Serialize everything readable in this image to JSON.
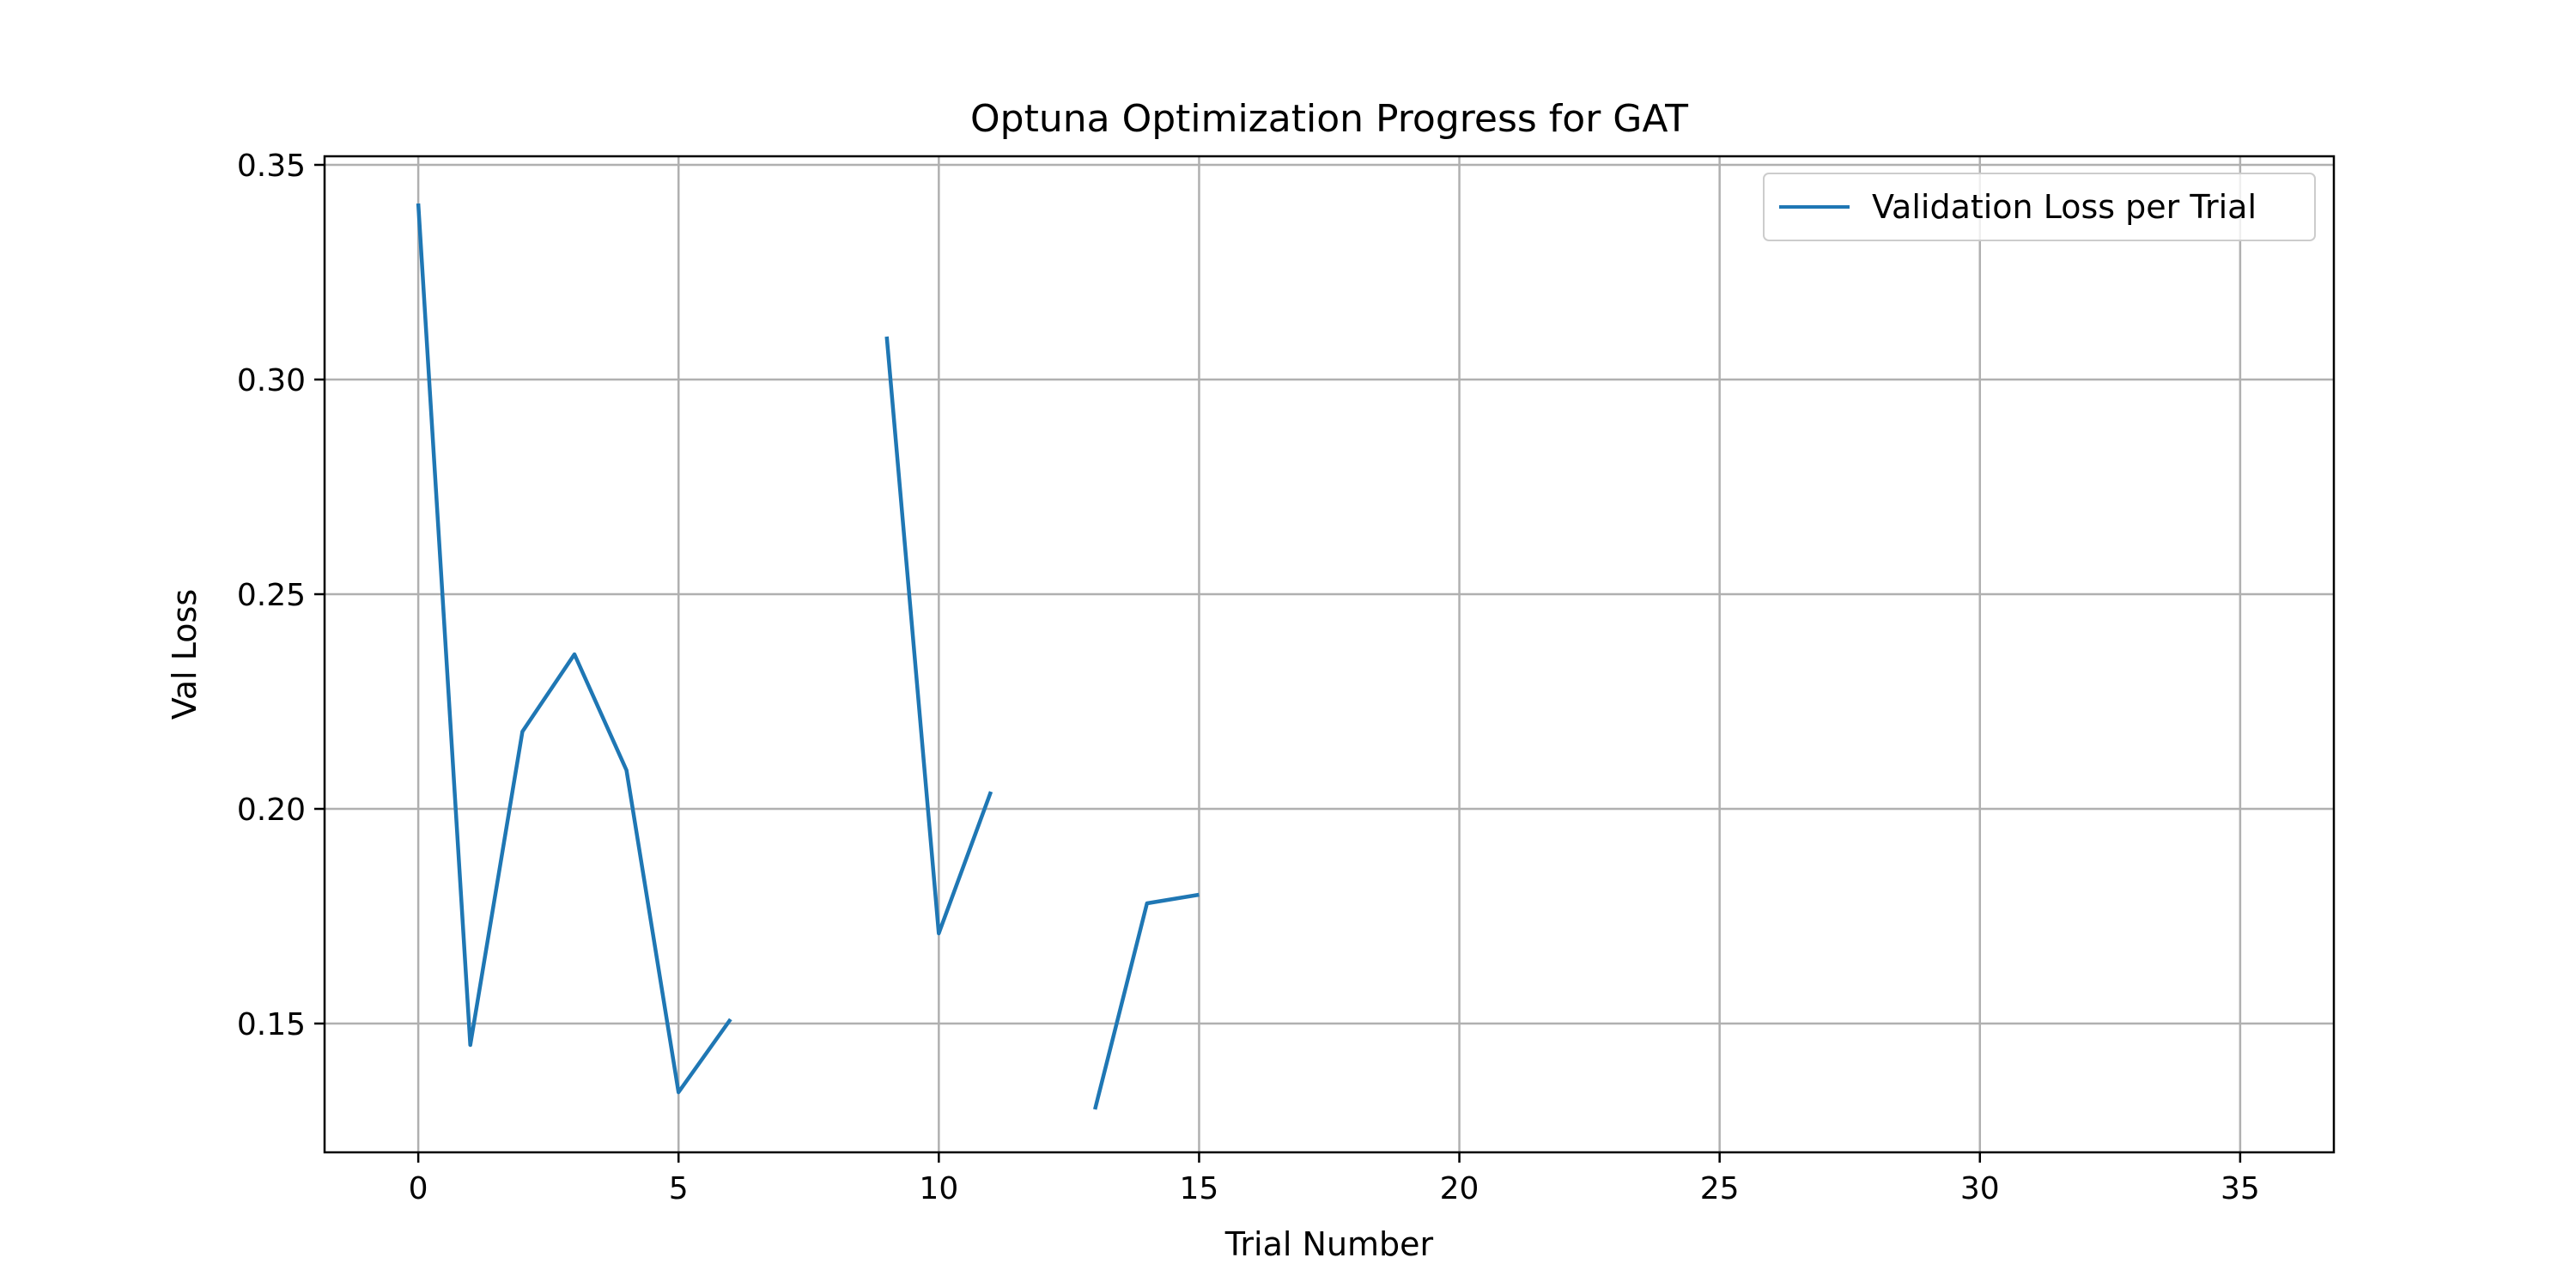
{
  "chart_data": {
    "type": "line",
    "title": "Optuna Optimization Progress for GAT",
    "xlabel": "Trial Number",
    "ylabel": "Val Loss",
    "xlim": [
      -1.8,
      36.8
    ],
    "ylim": [
      0.12,
      0.352
    ],
    "xticks": [
      0,
      5,
      10,
      15,
      20,
      25,
      30,
      35
    ],
    "yticks": [
      0.15,
      0.2,
      0.25,
      0.3,
      0.35
    ],
    "xtick_labels": [
      "0",
      "5",
      "10",
      "15",
      "20",
      "25",
      "30",
      "35"
    ],
    "ytick_labels": [
      "0.15",
      "0.20",
      "0.25",
      "0.30",
      "0.35"
    ],
    "grid": true,
    "legend_position": "top-right",
    "line_color": "#1f77b4",
    "grid_color": "#b0b0b0",
    "series": [
      {
        "name": "Validation Loss per Trial",
        "x": [
          0,
          1,
          2,
          3,
          4,
          5,
          6,
          7,
          8,
          9,
          10,
          11,
          12,
          13,
          14,
          15
        ],
        "values": [
          0.341,
          0.145,
          0.218,
          0.236,
          0.209,
          0.134,
          0.151,
          null,
          null,
          0.31,
          0.171,
          0.204,
          null,
          0.13,
          0.178,
          0.18
        ]
      }
    ]
  }
}
